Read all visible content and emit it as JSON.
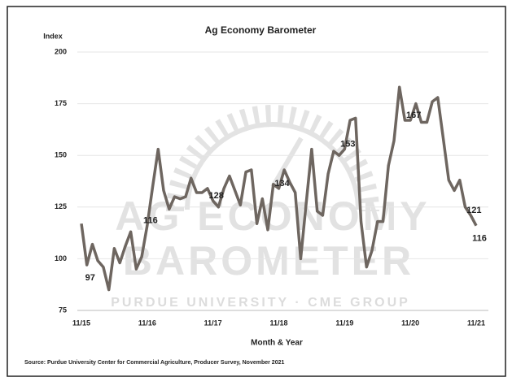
{
  "chart_data": {
    "type": "line",
    "title": "Ag Economy Barometer",
    "y_axis_label": "Index",
    "x_axis_label": "Month & Year",
    "source": "Source: Purdue University Center for Commercial Agriculture, Producer Survey, November 2021",
    "watermark": [
      "AG ECONOMY",
      "BAROMETER",
      "PURDUE UNIVERSITY  ·  CME GROUP"
    ],
    "categories": [
      "11/15",
      null,
      null,
      null,
      null,
      null,
      null,
      null,
      null,
      null,
      null,
      null,
      "11/16",
      null,
      null,
      null,
      null,
      null,
      null,
      null,
      null,
      null,
      null,
      null,
      "11/17",
      null,
      null,
      null,
      null,
      null,
      null,
      null,
      null,
      null,
      null,
      null,
      "11/18",
      null,
      null,
      null,
      null,
      null,
      null,
      null,
      null,
      null,
      null,
      null,
      "11/19",
      null,
      null,
      null,
      null,
      null,
      null,
      null,
      null,
      null,
      null,
      null,
      "11/20",
      null,
      null,
      null,
      null,
      null,
      null,
      null,
      null,
      null,
      null,
      null,
      "11/21"
    ],
    "series": [
      {
        "name": "Ag Economy Barometer",
        "color": "#6e6660",
        "values": [
          117,
          97,
          107,
          99,
          96,
          85,
          105,
          98,
          106,
          113,
          95,
          101,
          116,
          135,
          153,
          133,
          124,
          130,
          129,
          130,
          139,
          132,
          132,
          134,
          128,
          125,
          134,
          140,
          133,
          126,
          142,
          143,
          117,
          129,
          114,
          136,
          134,
          143,
          137,
          132,
          100,
          127,
          153,
          123,
          121,
          141,
          152,
          150,
          153,
          167,
          168,
          118,
          96,
          104,
          118,
          118,
          145,
          157,
          183,
          167,
          167,
          175,
          166,
          166,
          176,
          178,
          158,
          138,
          133,
          138,
          125,
          121,
          116
        ],
        "value_labels": [
          null,
          "97",
          null,
          null,
          null,
          null,
          null,
          null,
          null,
          null,
          null,
          null,
          "116",
          null,
          null,
          null,
          null,
          null,
          null,
          null,
          null,
          null,
          null,
          null,
          "128",
          null,
          null,
          null,
          null,
          null,
          null,
          null,
          null,
          null,
          null,
          null,
          "134",
          null,
          null,
          null,
          null,
          null,
          null,
          null,
          null,
          null,
          null,
          null,
          "153",
          null,
          null,
          null,
          null,
          null,
          null,
          null,
          null,
          null,
          null,
          null,
          "167",
          null,
          null,
          null,
          null,
          null,
          null,
          null,
          null,
          null,
          null,
          "121",
          "116"
        ]
      }
    ],
    "ylim": [
      75,
      200
    ],
    "yticks": [
      75,
      100,
      125,
      150,
      175,
      200
    ],
    "grid": true
  }
}
